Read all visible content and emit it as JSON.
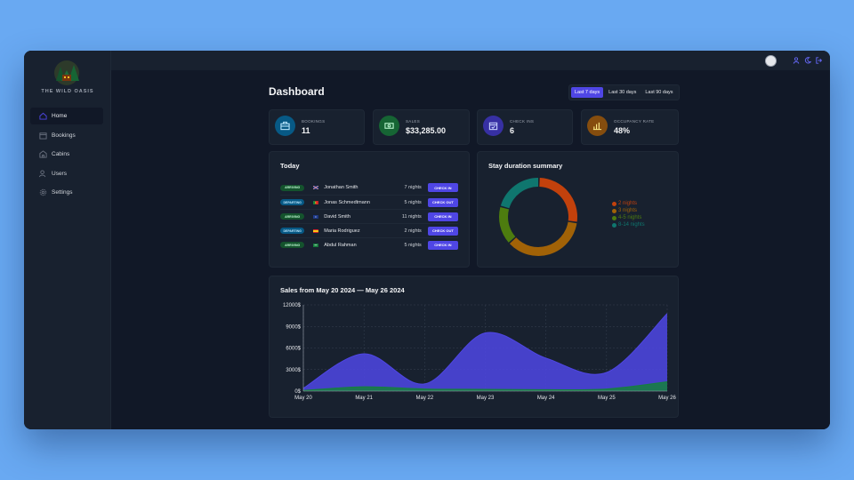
{
  "app": {
    "name": "THE WILD OASIS"
  },
  "nav": [
    {
      "label": "Home",
      "icon": "home-icon",
      "active": true
    },
    {
      "label": "Bookings",
      "icon": "calendar-icon",
      "active": false
    },
    {
      "label": "Cabins",
      "icon": "cabin-icon",
      "active": false
    },
    {
      "label": "Users",
      "icon": "users-icon",
      "active": false
    },
    {
      "label": "Settings",
      "icon": "gear-icon",
      "active": false
    }
  ],
  "page": {
    "title": "Dashboard"
  },
  "filters": [
    {
      "label": "Last 7 days",
      "active": true
    },
    {
      "label": "Last 30 days",
      "active": false
    },
    {
      "label": "Last 90 days",
      "active": false
    }
  ],
  "stats": [
    {
      "label": "BOOKINGS",
      "value": "11",
      "icon": "briefcase-icon",
      "color": "#075985"
    },
    {
      "label": "SALES",
      "value": "$33,285.00",
      "icon": "banknote-icon",
      "color": "#166534"
    },
    {
      "label": "CHECK INS",
      "value": "6",
      "icon": "calendar-check-icon",
      "color": "#3730a3"
    },
    {
      "label": "OCCUPANCY RATE",
      "value": "48%",
      "icon": "bar-chart-icon",
      "color": "#854d0e"
    }
  ],
  "today": {
    "title": "Today",
    "rows": [
      {
        "status": "ARRIVING",
        "type": "arriving",
        "guest": "Jonathan Smith",
        "nights": "7 nights",
        "action": "CHECK IN"
      },
      {
        "status": "DEPARTING",
        "type": "departing",
        "guest": "Jonas Schmedtmann",
        "nights": "5 nights",
        "action": "CHECK OUT"
      },
      {
        "status": "ARRIVING",
        "type": "arriving",
        "guest": "David Smith",
        "nights": "11 nights",
        "action": "CHECK IN"
      },
      {
        "status": "DEPARTING",
        "type": "departing",
        "guest": "Maria Rodriguez",
        "nights": "2 nights",
        "action": "CHECK OUT"
      },
      {
        "status": "ARRIVING",
        "type": "arriving",
        "guest": "Abdul Rahman",
        "nights": "5 nights",
        "action": "CHECK IN"
      }
    ]
  },
  "duration": {
    "title": "Stay duration summary",
    "legend": [
      {
        "label": "2 nights",
        "color": "#c2410c"
      },
      {
        "label": "3 nights",
        "color": "#a16207"
      },
      {
        "label": "4-5 nights",
        "color": "#4d7c0f"
      },
      {
        "label": "8-14 nights",
        "color": "#0f766e"
      }
    ]
  },
  "sales": {
    "title": "Sales from May 20 2024 — May 26 2024"
  },
  "chart_data": {
    "type": "area",
    "title": "Sales from May 20 2024 — May 26 2024",
    "x": [
      "May 20",
      "May 21",
      "May 22",
      "May 23",
      "May 24",
      "May 25",
      "May 26"
    ],
    "yticks": [
      "0$",
      "3000$",
      "6000$",
      "9000$",
      "12000$"
    ],
    "ylim": [
      0,
      12000
    ],
    "series": [
      {
        "values": [
          400,
          5200,
          1000,
          8100,
          4600,
          2600,
          10800
        ],
        "color": "#4f46e5"
      },
      {
        "values": [
          100,
          600,
          300,
          250,
          200,
          300,
          1300
        ],
        "color": "#15803d"
      }
    ],
    "grid": true
  },
  "pie_data": {
    "type": "pie",
    "categories": [
      "2 nights",
      "3 nights",
      "4-5 nights",
      "8-14 nights"
    ],
    "values": [
      27,
      36,
      16,
      21
    ]
  }
}
